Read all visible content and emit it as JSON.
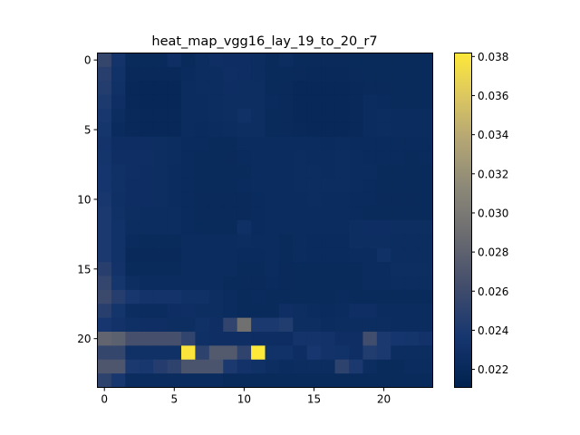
{
  "chart_data": {
    "type": "heatmap",
    "title": "heat_map_vgg16_lay_19_to_20_r7",
    "xlabel": "",
    "ylabel": "",
    "rows": 24,
    "cols": 24,
    "x_ticks": [
      0,
      5,
      10,
      15,
      20
    ],
    "y_ticks": [
      0,
      5,
      10,
      15,
      20
    ],
    "colormap": "cividis",
    "colorbar": {
      "min": 0.0211,
      "max": 0.0382,
      "ticks": [
        "0.022",
        "0.024",
        "0.026",
        "0.028",
        "0.030",
        "0.032",
        "0.034",
        "0.036",
        "0.038"
      ],
      "tick_values": [
        0.022,
        0.024,
        0.026,
        0.028,
        0.03,
        0.032,
        0.034,
        0.036,
        0.038
      ]
    },
    "values": [
      [
        0.0255,
        0.0233,
        0.0222,
        0.0222,
        0.0222,
        0.0228,
        0.0222,
        0.0225,
        0.0228,
        0.0227,
        0.0227,
        0.0225,
        0.0222,
        0.0225,
        0.0222,
        0.0221,
        0.0221,
        0.0221,
        0.0222,
        0.0222,
        0.0222,
        0.0222,
        0.0222,
        0.0222
      ],
      [
        0.0247,
        0.0231,
        0.022,
        0.022,
        0.022,
        0.022,
        0.0223,
        0.0225,
        0.0225,
        0.0228,
        0.0227,
        0.0225,
        0.0222,
        0.0222,
        0.0221,
        0.022,
        0.022,
        0.022,
        0.0221,
        0.0222,
        0.0222,
        0.0222,
        0.0222,
        0.0222
      ],
      [
        0.0244,
        0.023,
        0.0219,
        0.0218,
        0.0218,
        0.0218,
        0.0224,
        0.0225,
        0.0225,
        0.0227,
        0.0226,
        0.0226,
        0.0222,
        0.0221,
        0.0219,
        0.0219,
        0.0219,
        0.0219,
        0.022,
        0.0221,
        0.0221,
        0.0222,
        0.0222,
        0.0222
      ],
      [
        0.0241,
        0.0228,
        0.0219,
        0.0218,
        0.0218,
        0.0218,
        0.0224,
        0.0224,
        0.0225,
        0.0226,
        0.0226,
        0.0226,
        0.0223,
        0.0221,
        0.0219,
        0.0219,
        0.0219,
        0.0219,
        0.022,
        0.0224,
        0.0223,
        0.0222,
        0.0222,
        0.0222
      ],
      [
        0.0238,
        0.0225,
        0.022,
        0.0219,
        0.0219,
        0.0219,
        0.0224,
        0.0224,
        0.0225,
        0.0226,
        0.023,
        0.0226,
        0.0222,
        0.0221,
        0.0219,
        0.0219,
        0.0219,
        0.0219,
        0.022,
        0.0224,
        0.0225,
        0.0224,
        0.0224,
        0.0224
      ],
      [
        0.0235,
        0.0223,
        0.022,
        0.0219,
        0.0219,
        0.0219,
        0.0224,
        0.0223,
        0.0224,
        0.0225,
        0.0226,
        0.0226,
        0.0222,
        0.0221,
        0.022,
        0.0219,
        0.0219,
        0.0219,
        0.022,
        0.0224,
        0.0225,
        0.0224,
        0.0224,
        0.0224
      ],
      [
        0.0233,
        0.0227,
        0.0227,
        0.0227,
        0.0226,
        0.0225,
        0.0223,
        0.0223,
        0.0222,
        0.0222,
        0.0224,
        0.0224,
        0.0224,
        0.0224,
        0.0224,
        0.0224,
        0.0223,
        0.0224,
        0.0223,
        0.0223,
        0.0223,
        0.0223,
        0.0223,
        0.0223
      ],
      [
        0.0234,
        0.0228,
        0.0228,
        0.0228,
        0.0226,
        0.0225,
        0.0223,
        0.0222,
        0.0222,
        0.0221,
        0.0223,
        0.0224,
        0.0224,
        0.0224,
        0.0225,
        0.0224,
        0.0224,
        0.0225,
        0.0224,
        0.0223,
        0.0223,
        0.0223,
        0.0222,
        0.0223
      ],
      [
        0.0236,
        0.023,
        0.0228,
        0.0227,
        0.0226,
        0.0224,
        0.0223,
        0.0222,
        0.0222,
        0.0222,
        0.0222,
        0.0224,
        0.0224,
        0.0224,
        0.0225,
        0.0225,
        0.0224,
        0.0225,
        0.0224,
        0.0224,
        0.0222,
        0.0222,
        0.0222,
        0.0222
      ],
      [
        0.0236,
        0.023,
        0.0227,
        0.0227,
        0.0226,
        0.0224,
        0.0223,
        0.0222,
        0.0222,
        0.0222,
        0.0223,
        0.0224,
        0.0224,
        0.0224,
        0.0225,
        0.0225,
        0.0225,
        0.0225,
        0.0224,
        0.0223,
        0.0222,
        0.0222,
        0.0222,
        0.0222
      ],
      [
        0.0238,
        0.0229,
        0.0227,
        0.0227,
        0.0226,
        0.0224,
        0.0223,
        0.0221,
        0.0221,
        0.0221,
        0.0221,
        0.0223,
        0.0224,
        0.0224,
        0.0224,
        0.0225,
        0.0224,
        0.0224,
        0.0223,
        0.0223,
        0.0221,
        0.0221,
        0.0221,
        0.0222
      ],
      [
        0.024,
        0.023,
        0.0226,
        0.0225,
        0.0225,
        0.0225,
        0.0223,
        0.0221,
        0.0221,
        0.0221,
        0.0221,
        0.0223,
        0.0224,
        0.0224,
        0.0224,
        0.0224,
        0.0224,
        0.0224,
        0.0223,
        0.0222,
        0.0222,
        0.0222,
        0.0222,
        0.0222
      ],
      [
        0.024,
        0.0231,
        0.0225,
        0.0225,
        0.0225,
        0.0225,
        0.0223,
        0.0222,
        0.0222,
        0.0222,
        0.0229,
        0.0223,
        0.0224,
        0.0224,
        0.0224,
        0.0224,
        0.0224,
        0.0224,
        0.0226,
        0.0227,
        0.0227,
        0.0226,
        0.0226,
        0.0226
      ],
      [
        0.024,
        0.0231,
        0.0223,
        0.0222,
        0.0222,
        0.0222,
        0.0224,
        0.0224,
        0.0224,
        0.0224,
        0.0225,
        0.0224,
        0.0224,
        0.0222,
        0.0224,
        0.0223,
        0.0223,
        0.0223,
        0.0226,
        0.0226,
        0.0226,
        0.0225,
        0.0225,
        0.0225
      ],
      [
        0.024,
        0.0231,
        0.022,
        0.022,
        0.022,
        0.022,
        0.0224,
        0.0224,
        0.0224,
        0.0224,
        0.0223,
        0.0223,
        0.0224,
        0.0222,
        0.0224,
        0.0223,
        0.0223,
        0.0223,
        0.0224,
        0.0224,
        0.023,
        0.0225,
        0.0225,
        0.0225
      ],
      [
        0.0247,
        0.0232,
        0.0222,
        0.0222,
        0.0222,
        0.0222,
        0.0224,
        0.0224,
        0.0224,
        0.0224,
        0.0222,
        0.0222,
        0.0224,
        0.0221,
        0.0222,
        0.0222,
        0.0222,
        0.0222,
        0.0222,
        0.0224,
        0.0224,
        0.0226,
        0.0226,
        0.0226
      ],
      [
        0.0254,
        0.0235,
        0.0226,
        0.0224,
        0.0224,
        0.0224,
        0.0224,
        0.0224,
        0.0224,
        0.0222,
        0.0221,
        0.0221,
        0.0223,
        0.0221,
        0.0222,
        0.0222,
        0.0222,
        0.0222,
        0.0222,
        0.0224,
        0.0224,
        0.0225,
        0.0225,
        0.0225
      ],
      [
        0.0258,
        0.0246,
        0.0238,
        0.0233,
        0.0233,
        0.0233,
        0.023,
        0.023,
        0.0226,
        0.0224,
        0.0222,
        0.0223,
        0.0222,
        0.0222,
        0.0222,
        0.0222,
        0.0222,
        0.0223,
        0.0222,
        0.0222,
        0.0222,
        0.0222,
        0.0222,
        0.0222
      ],
      [
        0.0247,
        0.0234,
        0.0225,
        0.0224,
        0.0224,
        0.0227,
        0.0228,
        0.0226,
        0.0226,
        0.0224,
        0.0222,
        0.0222,
        0.0222,
        0.0228,
        0.0226,
        0.0224,
        0.0223,
        0.0224,
        0.0228,
        0.0228,
        0.0224,
        0.0224,
        0.0224,
        0.0224
      ],
      [
        0.0237,
        0.0232,
        0.0229,
        0.0228,
        0.0228,
        0.0226,
        0.0226,
        0.023,
        0.0228,
        0.0252,
        0.0292,
        0.024,
        0.024,
        0.0243,
        0.0226,
        0.0226,
        0.0224,
        0.0225,
        0.0225,
        0.0225,
        0.0225,
        0.0224,
        0.0224,
        0.0224
      ],
      [
        0.0283,
        0.0279,
        0.0265,
        0.0265,
        0.0265,
        0.0265,
        0.0252,
        0.0229,
        0.0228,
        0.0228,
        0.0228,
        0.0227,
        0.0227,
        0.0227,
        0.0233,
        0.0233,
        0.0232,
        0.0228,
        0.0228,
        0.0262,
        0.024,
        0.0236,
        0.0234,
        0.0232
      ],
      [
        0.0255,
        0.0255,
        0.023,
        0.023,
        0.023,
        0.023,
        0.038,
        0.025,
        0.0273,
        0.0273,
        0.0251,
        0.0382,
        0.0231,
        0.0231,
        0.0227,
        0.0237,
        0.0232,
        0.0231,
        0.0228,
        0.0243,
        0.024,
        0.0225,
        0.0225,
        0.0225
      ],
      [
        0.027,
        0.027,
        0.024,
        0.0238,
        0.0245,
        0.025,
        0.0268,
        0.0268,
        0.0268,
        0.024,
        0.0232,
        0.023,
        0.0226,
        0.0224,
        0.0225,
        0.0225,
        0.0225,
        0.025,
        0.024,
        0.0225,
        0.0222,
        0.0222,
        0.0224,
        0.0224
      ],
      [
        0.025,
        0.0238,
        0.0224,
        0.0224,
        0.0224,
        0.0224,
        0.0224,
        0.0224,
        0.0224,
        0.0222,
        0.0222,
        0.0222,
        0.0222,
        0.0222,
        0.0222,
        0.0222,
        0.0222,
        0.0222,
        0.0222,
        0.0222,
        0.0222,
        0.0222,
        0.0222,
        0.0222
      ]
    ]
  }
}
